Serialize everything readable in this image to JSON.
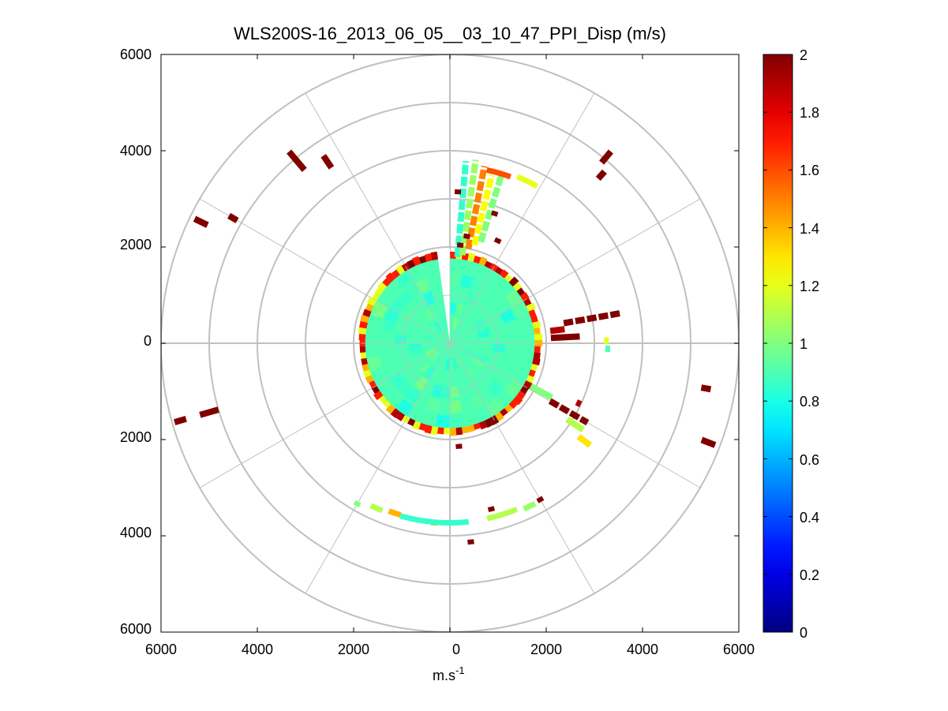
{
  "chart_data": {
    "type": "heatmap",
    "subtype": "polar-ppi",
    "title": "WLS200S-16_2013_06_05__03_10_47_PPI_Disp (m/s)",
    "xlabel": "m.s",
    "xlabel_sup": "-1",
    "xlim": [
      -6000,
      6000
    ],
    "ylim": [
      -6000,
      6000
    ],
    "x_tick_labels": [
      "6000",
      "4000",
      "2000",
      "0",
      "2000",
      "4000",
      "6000"
    ],
    "y_tick_labels": [
      "6000",
      "4000",
      "2000",
      "0",
      "2000",
      "4000",
      "6000"
    ],
    "polar_grid": {
      "rings_m": [
        1000,
        2000,
        3000,
        4000,
        5000,
        6000
      ],
      "spoke_step_deg": 30
    },
    "colorbar": {
      "colormap": "jet",
      "min": 0,
      "max": 2,
      "tick_labels": [
        "0",
        "0.2",
        "0.4",
        "0.6",
        "0.8",
        "1",
        "1.2",
        "1.4",
        "1.6",
        "1.8",
        "2"
      ]
    },
    "near_field": {
      "radius_m": 1850,
      "dominant_value": 0.9,
      "edge_values": [
        1.2,
        1.4,
        1.7,
        1.9,
        2.0
      ],
      "gap_azimuth_deg": [
        -8,
        0
      ]
    },
    "segments": [
      {
        "az": 5,
        "r1": 1800,
        "r2": 3800,
        "v": 0.85
      },
      {
        "az": 8,
        "r1": 1850,
        "r2": 3850,
        "v": 1.05
      },
      {
        "az": 11,
        "r1": 2000,
        "r2": 3750,
        "v": 1.5
      },
      {
        "az": 14,
        "r1": 2100,
        "r2": 3600,
        "v": 1.25
      },
      {
        "az": 17,
        "r1": 2200,
        "r2": 3700,
        "v": 1.0
      },
      {
        "az": 3,
        "r1": 3100,
        "r2": 3200,
        "v": 2.0
      },
      {
        "az": 6,
        "r1": 2000,
        "r2": 2100,
        "v": 2.0
      },
      {
        "az": 9,
        "r1": 2200,
        "r2": 2300,
        "v": 2.0
      },
      {
        "az": 19,
        "r1": 2800,
        "r2": 2900,
        "v": 2.0
      },
      {
        "az": 25,
        "r1": 2300,
        "r2": 2400,
        "v": 2.0
      },
      {
        "az": 40,
        "r1": 4900,
        "r2": 5200,
        "v": 2.0
      },
      {
        "az": 42,
        "r1": 4600,
        "r2": 4800,
        "v": 2.0
      },
      {
        "az": 83,
        "r1": 2100,
        "r2": 2400,
        "v": 1.9
      },
      {
        "az": 80,
        "r1": 2400,
        "r2": 3600,
        "v": 2.0
      },
      {
        "az": 87,
        "r1": 2100,
        "r2": 2700,
        "v": 2.0
      },
      {
        "az": 89,
        "r1": 3200,
        "r2": 3300,
        "v": 1.2
      },
      {
        "az": 92,
        "r1": 3230,
        "r2": 3330,
        "v": 0.9
      },
      {
        "az": 118,
        "r1": 1900,
        "r2": 2400,
        "v": 1.0
      },
      {
        "az": 120,
        "r1": 2400,
        "r2": 3300,
        "v": 2.0
      },
      {
        "az": 123,
        "r1": 2900,
        "r2": 3300,
        "v": 1.1
      },
      {
        "az": 126,
        "r1": 3300,
        "r2": 3600,
        "v": 1.3
      },
      {
        "az": 115,
        "r1": 2900,
        "r2": 3000,
        "v": 1.9
      },
      {
        "az": 100,
        "r1": 5300,
        "r2": 5500,
        "v": 2.0
      },
      {
        "az": 111,
        "r1": 5600,
        "r2": 5900,
        "v": 2.0
      },
      {
        "az": 150,
        "r1": 3700,
        "r2": 3800,
        "v": 2.0
      },
      {
        "az": 166,
        "r1": 3500,
        "r2": 3600,
        "v": 2.0
      },
      {
        "az": 175,
        "r1": 2100,
        "r2": 2200,
        "v": 2.0
      },
      {
        "az": 174,
        "r1": 4100,
        "r2": 4200,
        "v": 2.0
      },
      {
        "az": 185,
        "r1": 3700,
        "r2": 3800,
        "v": 1.4
      },
      {
        "az": 210,
        "r1": 3800,
        "r2": 3900,
        "v": 1.0
      },
      {
        "az": 254,
        "r1": 5000,
        "r2": 5400,
        "v": 2.0
      },
      {
        "az": 254,
        "r1": 5700,
        "r2": 5950,
        "v": 2.0
      },
      {
        "az": 296,
        "r1": 5600,
        "r2": 5900,
        "v": 2.0
      },
      {
        "az": 300,
        "r1": 5100,
        "r2": 5300,
        "v": 2.0
      },
      {
        "az": 320,
        "r1": 4700,
        "r2": 5200,
        "v": 2.0
      },
      {
        "az": 326,
        "r1": 4400,
        "r2": 4700,
        "v": 2.0
      }
    ],
    "arcs": [
      {
        "r": 3730,
        "az1": 174,
        "az2": 196,
        "v": 0.85
      },
      {
        "r": 3720,
        "az1": 158,
        "az2": 168,
        "v": 1.1
      },
      {
        "r": 3770,
        "az1": 152,
        "az2": 156,
        "v": 1.05
      },
      {
        "r": 3710,
        "az1": 196,
        "az2": 200,
        "v": 1.4
      },
      {
        "r": 3750,
        "az1": 202,
        "az2": 206,
        "v": 1.1
      },
      {
        "r": 3730,
        "az1": 22,
        "az2": 29,
        "v": 1.2
      },
      {
        "r": 3680,
        "az1": 12,
        "az2": 20,
        "v": 1.6
      }
    ]
  }
}
